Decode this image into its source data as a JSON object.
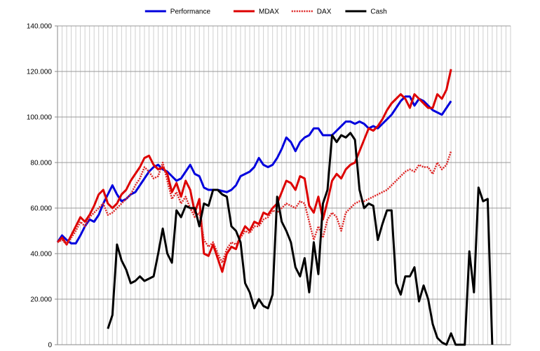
{
  "chart_data": {
    "type": "line",
    "title": "",
    "xlabel": "",
    "ylabel": "",
    "ylim": [
      0,
      140000
    ],
    "yticks": [
      0,
      20000,
      40000,
      60000,
      80000,
      100000,
      120000,
      140000
    ],
    "ytick_labels": [
      "0",
      "20.000",
      "40.000",
      "60.000",
      "80.000",
      "100.000",
      "120.000",
      "140.000"
    ],
    "grid": true,
    "legend": "top-center",
    "x_count": 100,
    "series": [
      {
        "name": "Performance",
        "color": "#0000dd",
        "style": "solid",
        "values": [
          45000,
          48000,
          46000,
          44500,
          44500,
          48000,
          52000,
          55000,
          54000,
          57000,
          62000,
          66000,
          70000,
          66000,
          63000,
          64000,
          66000,
          67000,
          70000,
          73000,
          76000,
          78000,
          79000,
          77000,
          76000,
          74000,
          72000,
          73000,
          76000,
          79000,
          75000,
          74000,
          69000,
          68000,
          68000,
          68000,
          67500,
          67000,
          68000,
          70000,
          74000,
          75000,
          76000,
          78000,
          82000,
          79000,
          78000,
          79000,
          82000,
          86000,
          91000,
          89000,
          85000,
          89000,
          91000,
          92000,
          95000,
          95000,
          92000,
          92000,
          92000,
          94000,
          96000,
          98000,
          98000,
          97000,
          98000,
          97000,
          95000,
          96000,
          95000,
          97000,
          99000,
          101000,
          104000,
          107000,
          109000,
          109000,
          105000,
          108000,
          107000,
          105000,
          103000,
          102000,
          101000,
          104000,
          107000
        ]
      },
      {
        "name": "MDAX",
        "color": "#dd0000",
        "style": "solid",
        "values": [
          45000,
          47000,
          44000,
          48000,
          52000,
          56000,
          54000,
          57000,
          61000,
          66000,
          68000,
          62000,
          60000,
          62000,
          66000,
          68000,
          72000,
          75000,
          78000,
          82000,
          83000,
          79000,
          77000,
          78000,
          75000,
          67000,
          71000,
          65000,
          72000,
          68000,
          58000,
          64000,
          40000,
          39000,
          44000,
          38000,
          32000,
          40000,
          43000,
          42000,
          48000,
          52000,
          50000,
          54000,
          53000,
          58000,
          57000,
          60000,
          62000,
          67000,
          72000,
          71000,
          68000,
          74000,
          73000,
          61000,
          58000,
          65000,
          55000,
          63000,
          72000,
          75000,
          73000,
          77000,
          79000,
          80000,
          85000,
          90000,
          95000,
          94000,
          96000,
          99000,
          103000,
          106000,
          108000,
          110000,
          108000,
          104000,
          110000,
          108000,
          106000,
          104000,
          104000,
          110000,
          108000,
          112000,
          121000
        ]
      },
      {
        "name": "DAX",
        "color": "#dd2222",
        "style": "dotted",
        "values": [
          45000,
          46000,
          44000,
          47000,
          50000,
          54000,
          52000,
          56000,
          58000,
          60000,
          62000,
          57000,
          58000,
          60000,
          62000,
          64000,
          66000,
          70000,
          73000,
          78000,
          76000,
          73000,
          74000,
          80000,
          72000,
          64000,
          67000,
          62000,
          65000,
          60000,
          56000,
          58000,
          46000,
          43000,
          45000,
          40000,
          36000,
          42000,
          45000,
          44000,
          47000,
          50000,
          49000,
          52000,
          52000,
          55000,
          56000,
          59000,
          58000,
          60000,
          62000,
          61000,
          60000,
          63000,
          62000,
          54000,
          46000,
          52000,
          47000,
          55000,
          58000,
          56000,
          50000,
          58000,
          60000,
          62000,
          63000,
          63000,
          64000,
          65000,
          66000,
          67000,
          68000,
          70000,
          72000,
          74000,
          76000,
          77000,
          76000,
          79000,
          78000,
          78000,
          75000,
          80000,
          77000,
          79000,
          85000
        ]
      },
      {
        "name": "Cash",
        "color": "#000000",
        "style": "solid",
        "values": [
          null,
          null,
          null,
          null,
          null,
          null,
          null,
          null,
          null,
          null,
          null,
          7000,
          13000,
          44000,
          37000,
          33000,
          27000,
          28000,
          30000,
          28000,
          29000,
          30000,
          40000,
          51000,
          40000,
          36000,
          59000,
          56000,
          61000,
          60000,
          60000,
          52000,
          62000,
          61000,
          68000,
          68000,
          66000,
          65000,
          52000,
          50000,
          45000,
          27000,
          23000,
          16000,
          20000,
          17000,
          16000,
          22000,
          65000,
          54000,
          50000,
          45000,
          34000,
          30000,
          38000,
          23000,
          45000,
          31000,
          62000,
          68000,
          92000,
          89000,
          92000,
          91000,
          93000,
          90000,
          68000,
          60000,
          62000,
          61000,
          46000,
          53000,
          59000,
          59000,
          27000,
          22000,
          30000,
          30000,
          34000,
          19000,
          26000,
          20000,
          9000,
          3000,
          1000,
          0,
          5000,
          0,
          0,
          0,
          41000,
          23000,
          69000,
          63000,
          64000,
          0
        ]
      }
    ]
  }
}
